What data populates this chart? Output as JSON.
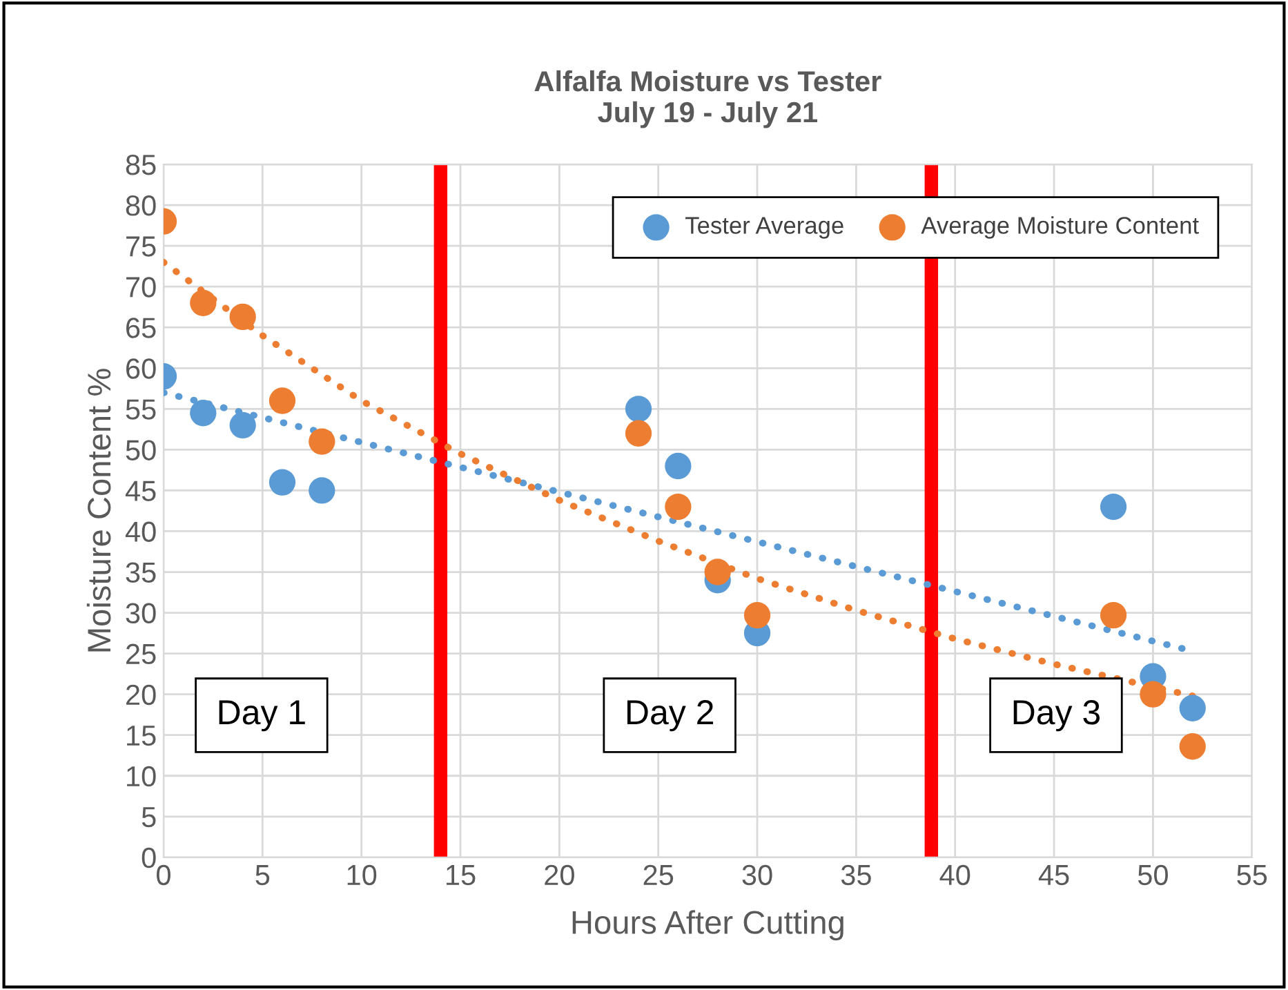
{
  "chart_data": {
    "type": "scatter",
    "title": "Alfalfa Moisture vs Tester\nJuly 19 - July 21",
    "xlabel": "Hours After Cutting",
    "ylabel": "Moisture Content %",
    "series": [
      {
        "name": "Tester Average",
        "color": "#5b9bd5",
        "x": [
          0,
          2,
          4,
          6,
          8,
          24,
          26,
          28,
          30,
          48,
          50,
          52
        ],
        "values": [
          59,
          54.5,
          53,
          46,
          45,
          55,
          48,
          34,
          27.5,
          43,
          22.2,
          18.3
        ]
      },
      {
        "name": "Average Moisture Content",
        "color": "#ed7d31",
        "x": [
          0,
          2,
          4,
          6,
          8,
          24,
          26,
          28,
          30,
          48,
          50,
          52
        ],
        "values": [
          78,
          68,
          66.3,
          56,
          51,
          52,
          43,
          35,
          29.7,
          29.7,
          20,
          13.6
        ]
      },
      {
        "type": "line",
        "line_style": "dotted",
        "marker": "none",
        "color": "#5b9bd5",
        "x": [
          0,
          52
        ],
        "values": [
          57,
          25.3
        ]
      },
      {
        "type": "line",
        "line_style": "dotted",
        "marker": "none",
        "color": "#ed7d31",
        "x": [
          0,
          5,
          10,
          15,
          20,
          25,
          30,
          35,
          40,
          45,
          52
        ],
        "values": [
          73,
          64,
          56,
          49.5,
          43.8,
          38.8,
          34.2,
          30.3,
          26.8,
          23.7,
          19.8
        ]
      }
    ],
    "marker": "circle",
    "xlim": [
      0,
      55
    ],
    "xticks": [
      0,
      5,
      10,
      15,
      20,
      25,
      30,
      35,
      40,
      45,
      50,
      55
    ],
    "ylim": [
      0,
      85
    ],
    "yticks": [
      0,
      5,
      10,
      15,
      20,
      25,
      30,
      35,
      40,
      45,
      50,
      55,
      60,
      65,
      70,
      75,
      80,
      85
    ],
    "grid": true,
    "legend": "top right",
    "ref_lines": [
      {
        "axis": "x",
        "value": 14,
        "color": "#ff0000"
      },
      {
        "axis": "x",
        "value": 38.8,
        "color": "#ff0000"
      }
    ],
    "annotations": [
      "Day 1",
      "Day 2",
      "Day 3"
    ]
  }
}
